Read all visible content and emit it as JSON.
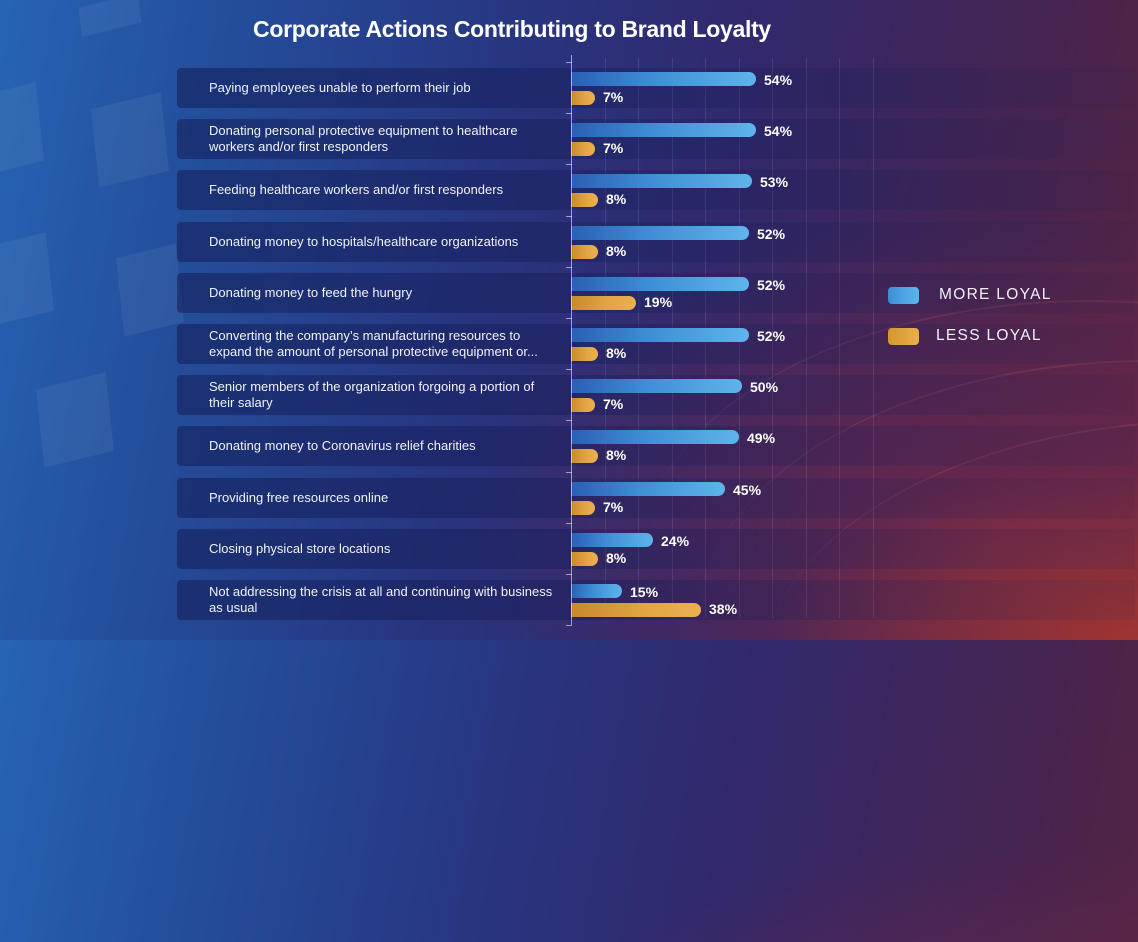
{
  "chart_data": {
    "type": "bar",
    "orientation": "horizontal",
    "title": "Corporate Actions Contributing to Brand Loyalty",
    "xlabel": "",
    "ylabel": "",
    "xlim": [
      0,
      100
    ],
    "grid": true,
    "legend_position": "right",
    "value_format": "percent",
    "categories": [
      "Paying employees unable to perform their job",
      "Donating personal protective equipment to healthcare workers and/or first responders",
      "Feeding healthcare workers and/or first responders",
      "Donating money to hospitals/healthcare organizations",
      "Donating money to feed the hungry",
      "Converting the company’s manufacturing resources to expand the amount of personal protective equipment or...",
      "Senior members of the organization forgoing a portion of their salary",
      "Donating money to Coronavirus relief charities",
      "Providing free resources online",
      "Closing physical store locations",
      "Not addressing the crisis at all and continuing with business as usual"
    ],
    "series": [
      {
        "name": "MORE LOYAL",
        "color": "#4fa3e3",
        "values": [
          54,
          54,
          53,
          52,
          52,
          52,
          50,
          49,
          45,
          24,
          15
        ]
      },
      {
        "name": "LESS LOYAL",
        "color": "#e3a645",
        "values": [
          7,
          7,
          8,
          8,
          19,
          8,
          7,
          8,
          7,
          8,
          38
        ]
      }
    ]
  },
  "header": {
    "title": "Corporate Actions Contributing to Brand Loyalty"
  },
  "legend": [
    {
      "label": "MORE LOYAL",
      "color": "#4fa3e3"
    },
    {
      "label": "LESS LOYAL",
      "color": "#e3a645"
    }
  ],
  "rows": [
    {
      "label": "Paying employees unable to perform their job",
      "more": 54,
      "less": 7,
      "more_text": "54%",
      "less_text": "7%"
    },
    {
      "label": "Donating personal protective equipment to healthcare workers and/or first responders",
      "more": 54,
      "less": 7,
      "more_text": "54%",
      "less_text": "7%"
    },
    {
      "label": "Feeding healthcare workers and/or first responders",
      "more": 53,
      "less": 8,
      "more_text": "53%",
      "less_text": "8%"
    },
    {
      "label": "Donating money to hospitals/healthcare organizations",
      "more": 52,
      "less": 8,
      "more_text": "52%",
      "less_text": "8%"
    },
    {
      "label": "Donating money to feed the hungry",
      "more": 52,
      "less": 19,
      "more_text": "52%",
      "less_text": "19%"
    },
    {
      "label": "Converting the company’s manufacturing resources to expand the amount of personal protective equipment or...",
      "more": 52,
      "less": 8,
      "more_text": "52%",
      "less_text": "8%"
    },
    {
      "label": "Senior members of the organization forgoing a portion of their salary",
      "more": 50,
      "less": 7,
      "more_text": "50%",
      "less_text": "7%"
    },
    {
      "label": "Donating money to Coronavirus relief charities",
      "more": 49,
      "less": 8,
      "more_text": "49%",
      "less_text": "8%"
    },
    {
      "label": "Providing free resources online",
      "more": 45,
      "less": 7,
      "more_text": "45%",
      "less_text": "7%"
    },
    {
      "label": "Closing physical store locations",
      "more": 24,
      "less": 8,
      "more_text": "24%",
      "less_text": "8%"
    },
    {
      "label": "Not addressing the crisis at all and continuing with business as usual",
      "more": 15,
      "less": 38,
      "more_text": "15%",
      "less_text": "38%"
    }
  ]
}
